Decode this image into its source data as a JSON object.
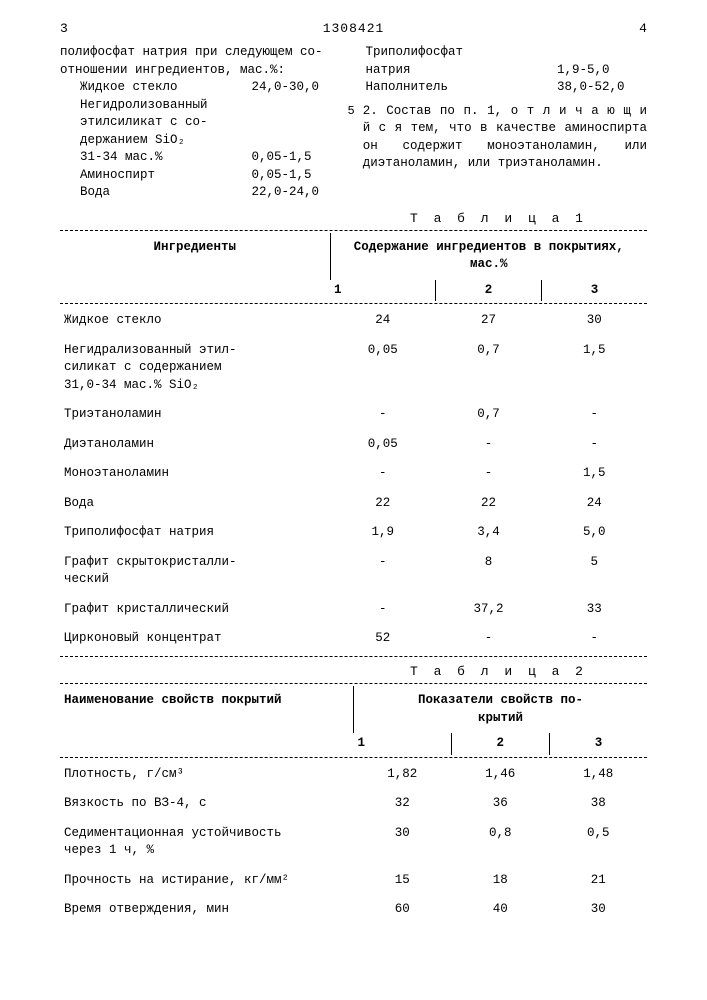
{
  "header": {
    "page_left": "3",
    "doc_number": "1308421",
    "page_right": "4"
  },
  "left_col": {
    "intro_line1": "полифосфат натрия при следующем со-",
    "intro_line2": "отношении ингредиентов, мас.%:",
    "items": [
      {
        "name": "Жидкое стекло",
        "val": "24,0-30,0"
      },
      {
        "name": "Негидролизованный",
        "val": ""
      },
      {
        "name": "этилсиликат с со-",
        "val": ""
      },
      {
        "name": "держанием SiO₂",
        "val": ""
      },
      {
        "name": "31-34 мас.%",
        "val": "0,05-1,5"
      },
      {
        "name": "Аминоспирт",
        "val": "0,05-1,5"
      },
      {
        "name": "Вода",
        "val": "22,0-24,0"
      }
    ]
  },
  "right_col": {
    "items": [
      {
        "name": "Триполифосфат",
        "val": ""
      },
      {
        "name": "натрия",
        "val": "1,9-5,0"
      },
      {
        "name": "Наполнитель",
        "val": "38,0-52,0"
      }
    ],
    "claim_line_num": "5",
    "claim_text": "2. Состав по п. 1, о т л и ч а ю щ и й с я  тем, что в качестве аминоспирта он содержит моноэтаноламин, или диэтаноламин, или триэтаноламин."
  },
  "table1": {
    "title": "Т а б л и ц а  1",
    "header_col1": "Ингредиенты",
    "header_group": "Содержание ингредиентов в покрытиях, мас.%",
    "cols": [
      "1",
      "2",
      "3"
    ],
    "rows": [
      {
        "name": "Жидкое стекло",
        "v": [
          "24",
          "27",
          "30"
        ]
      },
      {
        "name": "Негидрализованный этил-\nсиликат с содержанием\n31,0-34 мас.% SiO₂",
        "v": [
          "0,05",
          "0,7",
          "1,5"
        ]
      },
      {
        "name": "Триэтаноламин",
        "v": [
          "-",
          "0,7",
          "-"
        ]
      },
      {
        "name": "Диэтаноламин",
        "v": [
          "0,05",
          "-",
          "-"
        ]
      },
      {
        "name": "Моноэтаноламин",
        "v": [
          "-",
          "-",
          "1,5"
        ]
      },
      {
        "name": "Вода",
        "v": [
          "22",
          "22",
          "24"
        ]
      },
      {
        "name": "Триполифосфат натрия",
        "v": [
          "1,9",
          "3,4",
          "5,0"
        ]
      },
      {
        "name": "Графит скрытокристалли-\nческий",
        "v": [
          "-",
          "8",
          "5"
        ]
      },
      {
        "name": "Графит кристаллический",
        "v": [
          "-",
          "37,2",
          "33"
        ]
      },
      {
        "name": "Цирконовый концентрат",
        "v": [
          "52",
          "-",
          "-"
        ]
      }
    ]
  },
  "table2": {
    "title": "Т а б л и ц а  2",
    "header_col1": "Наименование свойств покрытий",
    "header_group": "Показатели свойств по-\nкрытий",
    "cols": [
      "1",
      "2",
      "3"
    ],
    "rows": [
      {
        "name": "Плотность, г/см³",
        "v": [
          "1,82",
          "1,46",
          "1,48"
        ]
      },
      {
        "name": "Вязкость по ВЗ-4, с",
        "v": [
          "32",
          "36",
          "38"
        ]
      },
      {
        "name": "Седиментационная устойчивость\nчерез 1 ч, %",
        "v": [
          "30",
          "0,8",
          "0,5"
        ]
      },
      {
        "name": "Прочность на истирание, кг/мм²",
        "v": [
          "15",
          "18",
          "21"
        ]
      },
      {
        "name": "Время отверждения, мин",
        "v": [
          "60",
          "40",
          "30"
        ]
      }
    ]
  }
}
